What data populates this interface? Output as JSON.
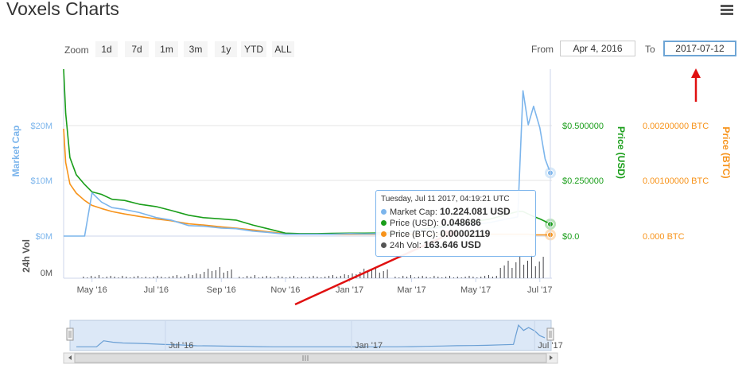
{
  "header": {
    "title": "Voxels Charts",
    "menu_icon": "hamburger-menu-icon"
  },
  "zoom": {
    "label": "Zoom",
    "buttons": [
      "1d",
      "7d",
      "1m",
      "3m",
      "1y",
      "YTD",
      "ALL"
    ]
  },
  "range": {
    "from_label": "From",
    "from_value": "Apr 4, 2016",
    "to_label": "To",
    "to_value": "2017-07-12"
  },
  "tooltip": {
    "header": "Tuesday, Jul 11 2017, 04:19:21 UTC",
    "rows": [
      {
        "label": "Market Cap: ",
        "value": "10.224.081 USD",
        "color": "#7cb5ec"
      },
      {
        "label": "Price (USD): ",
        "value": "0.048686",
        "color": "#1a9e1a"
      },
      {
        "label": "Price (BTC): ",
        "value": "0.00002119",
        "color": "#f7931a"
      },
      {
        "label": "24h Vol: ",
        "value": "163.646 USD",
        "color": "#555555"
      }
    ]
  },
  "colors": {
    "market_cap": "#7cb5ec",
    "price_usd": "#1a9e1a",
    "price_btc": "#f7931a",
    "volume": "#434348",
    "annotation": "#e01010"
  },
  "chart_data": {
    "type": "line",
    "x_ticks": [
      "May '16",
      "Jul '16",
      "Sep '16",
      "Nov '16",
      "Jan '17",
      "Mar '17",
      "May '17",
      "Jul '17"
    ],
    "x": [
      "2016-04-04",
      "2016-04-06",
      "2016-04-10",
      "2016-04-16",
      "2016-04-24",
      "2016-05-01",
      "2016-05-10",
      "2016-05-20",
      "2016-06-01",
      "2016-06-15",
      "2016-07-01",
      "2016-07-15",
      "2016-08-01",
      "2016-08-15",
      "2016-09-01",
      "2016-09-15",
      "2016-10-01",
      "2016-10-15",
      "2016-11-01",
      "2016-11-15",
      "2016-12-01",
      "2016-12-15",
      "2017-01-01",
      "2017-01-15",
      "2017-02-01",
      "2017-02-15",
      "2017-03-01",
      "2017-03-15",
      "2017-04-01",
      "2017-04-15",
      "2017-05-01",
      "2017-05-15",
      "2017-06-01",
      "2017-06-10",
      "2017-06-15",
      "2017-06-20",
      "2017-06-25",
      "2017-07-01",
      "2017-07-06",
      "2017-07-11"
    ],
    "series": [
      {
        "name": "Market Cap",
        "axis": "Market Cap",
        "values": [
          0,
          0,
          0,
          0,
          0,
          7.0,
          5.5,
          4.6,
          4.3,
          3.8,
          3.0,
          2.6,
          1.7,
          1.6,
          1.3,
          1.2,
          0.8,
          0.6,
          0.3,
          0.3,
          0.3,
          0.3,
          0.4,
          0.35,
          0.4,
          0.4,
          0.8,
          1.1,
          1.4,
          1.8,
          1.9,
          2.2,
          2.8,
          3.1,
          23.5,
          18.0,
          21.0,
          17.5,
          12.5,
          10.224
        ]
      },
      {
        "name": "Price (USD)",
        "axis": "Price (USD)",
        "values": [
          0.68,
          0.5,
          0.32,
          0.25,
          0.21,
          0.18,
          0.17,
          0.15,
          0.145,
          0.13,
          0.12,
          0.105,
          0.085,
          0.075,
          0.07,
          0.065,
          0.045,
          0.03,
          0.012,
          0.01,
          0.01,
          0.011,
          0.012,
          0.012,
          0.013,
          0.013,
          0.02,
          0.03,
          0.04,
          0.055,
          0.06,
          0.07,
          0.09,
          0.1,
          0.1,
          0.09,
          0.08,
          0.07,
          0.06,
          0.048686
        ]
      },
      {
        "name": "Price (BTC)",
        "axis": "Price (BTC)",
        "values": [
          0.00175,
          0.0012,
          0.00085,
          0.0007,
          0.00058,
          0.0005,
          0.00045,
          0.0004,
          0.00036,
          0.00032,
          0.00028,
          0.00025,
          0.0002,
          0.00018,
          0.00015,
          0.00013,
          0.0001,
          7e-05,
          4e-05,
          3e-05,
          3e-05,
          3e-05,
          3e-05,
          3e-05,
          3e-05,
          3e-05,
          3e-05,
          3e-05,
          3e-05,
          3e-05,
          3e-05,
          3e-05,
          3e-05,
          3e-05,
          3e-05,
          3e-05,
          2e-05,
          2e-05,
          2e-05,
          2.119e-05
        ]
      }
    ],
    "volume_axis_label": "24h Vol",
    "volume_ticks": [
      "0M"
    ],
    "left_axis": {
      "label": "Market Cap",
      "ticks": [
        "$0M",
        "$10M",
        "$20M"
      ],
      "ylim": [
        0,
        27
      ]
    },
    "right_axis_usd": {
      "label": "Price (USD)",
      "ticks": [
        "$0.0",
        "$0.250000",
        "$0.500000"
      ],
      "ylim": [
        0,
        0.68
      ]
    },
    "right_axis_btc": {
      "label": "Price (BTC)",
      "ticks": [
        "0.000 BTC",
        "0.00100000 BTC",
        "0.00200000 BTC"
      ],
      "ylim": [
        0,
        0.00272
      ]
    },
    "navigator_ticks": [
      "Jul '16",
      "Jan '17",
      "Jul '17"
    ],
    "grid": true
  }
}
